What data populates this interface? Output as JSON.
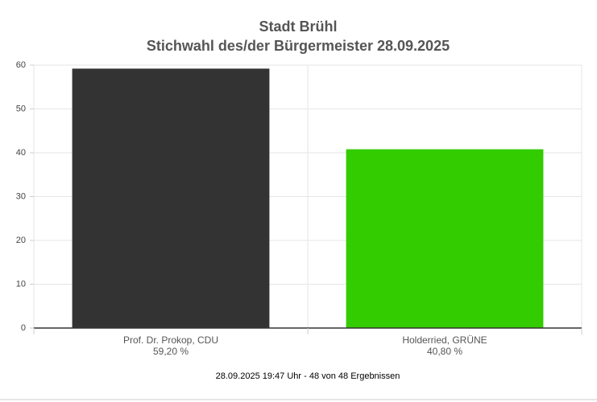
{
  "chart_data": {
    "type": "bar",
    "title": "Stadt Brühl",
    "subtitle": "Stichwahl des/der Bürgermeister 28.09.2025",
    "categories": [
      "Prof. Dr. Prokop, CDU",
      "Holderried, GRÜNE"
    ],
    "values": [
      59.2,
      40.8
    ],
    "value_labels": [
      "59,20 %",
      "40,80 %"
    ],
    "colors": [
      "#333333",
      "#33cc00"
    ],
    "ylim": [
      0,
      60
    ],
    "yticks": [
      0,
      10,
      20,
      30,
      40,
      50,
      60
    ],
    "grid": true,
    "annotation": "28.09.2025 19:47 Uhr - 48 von 48 Ergebnissen"
  }
}
